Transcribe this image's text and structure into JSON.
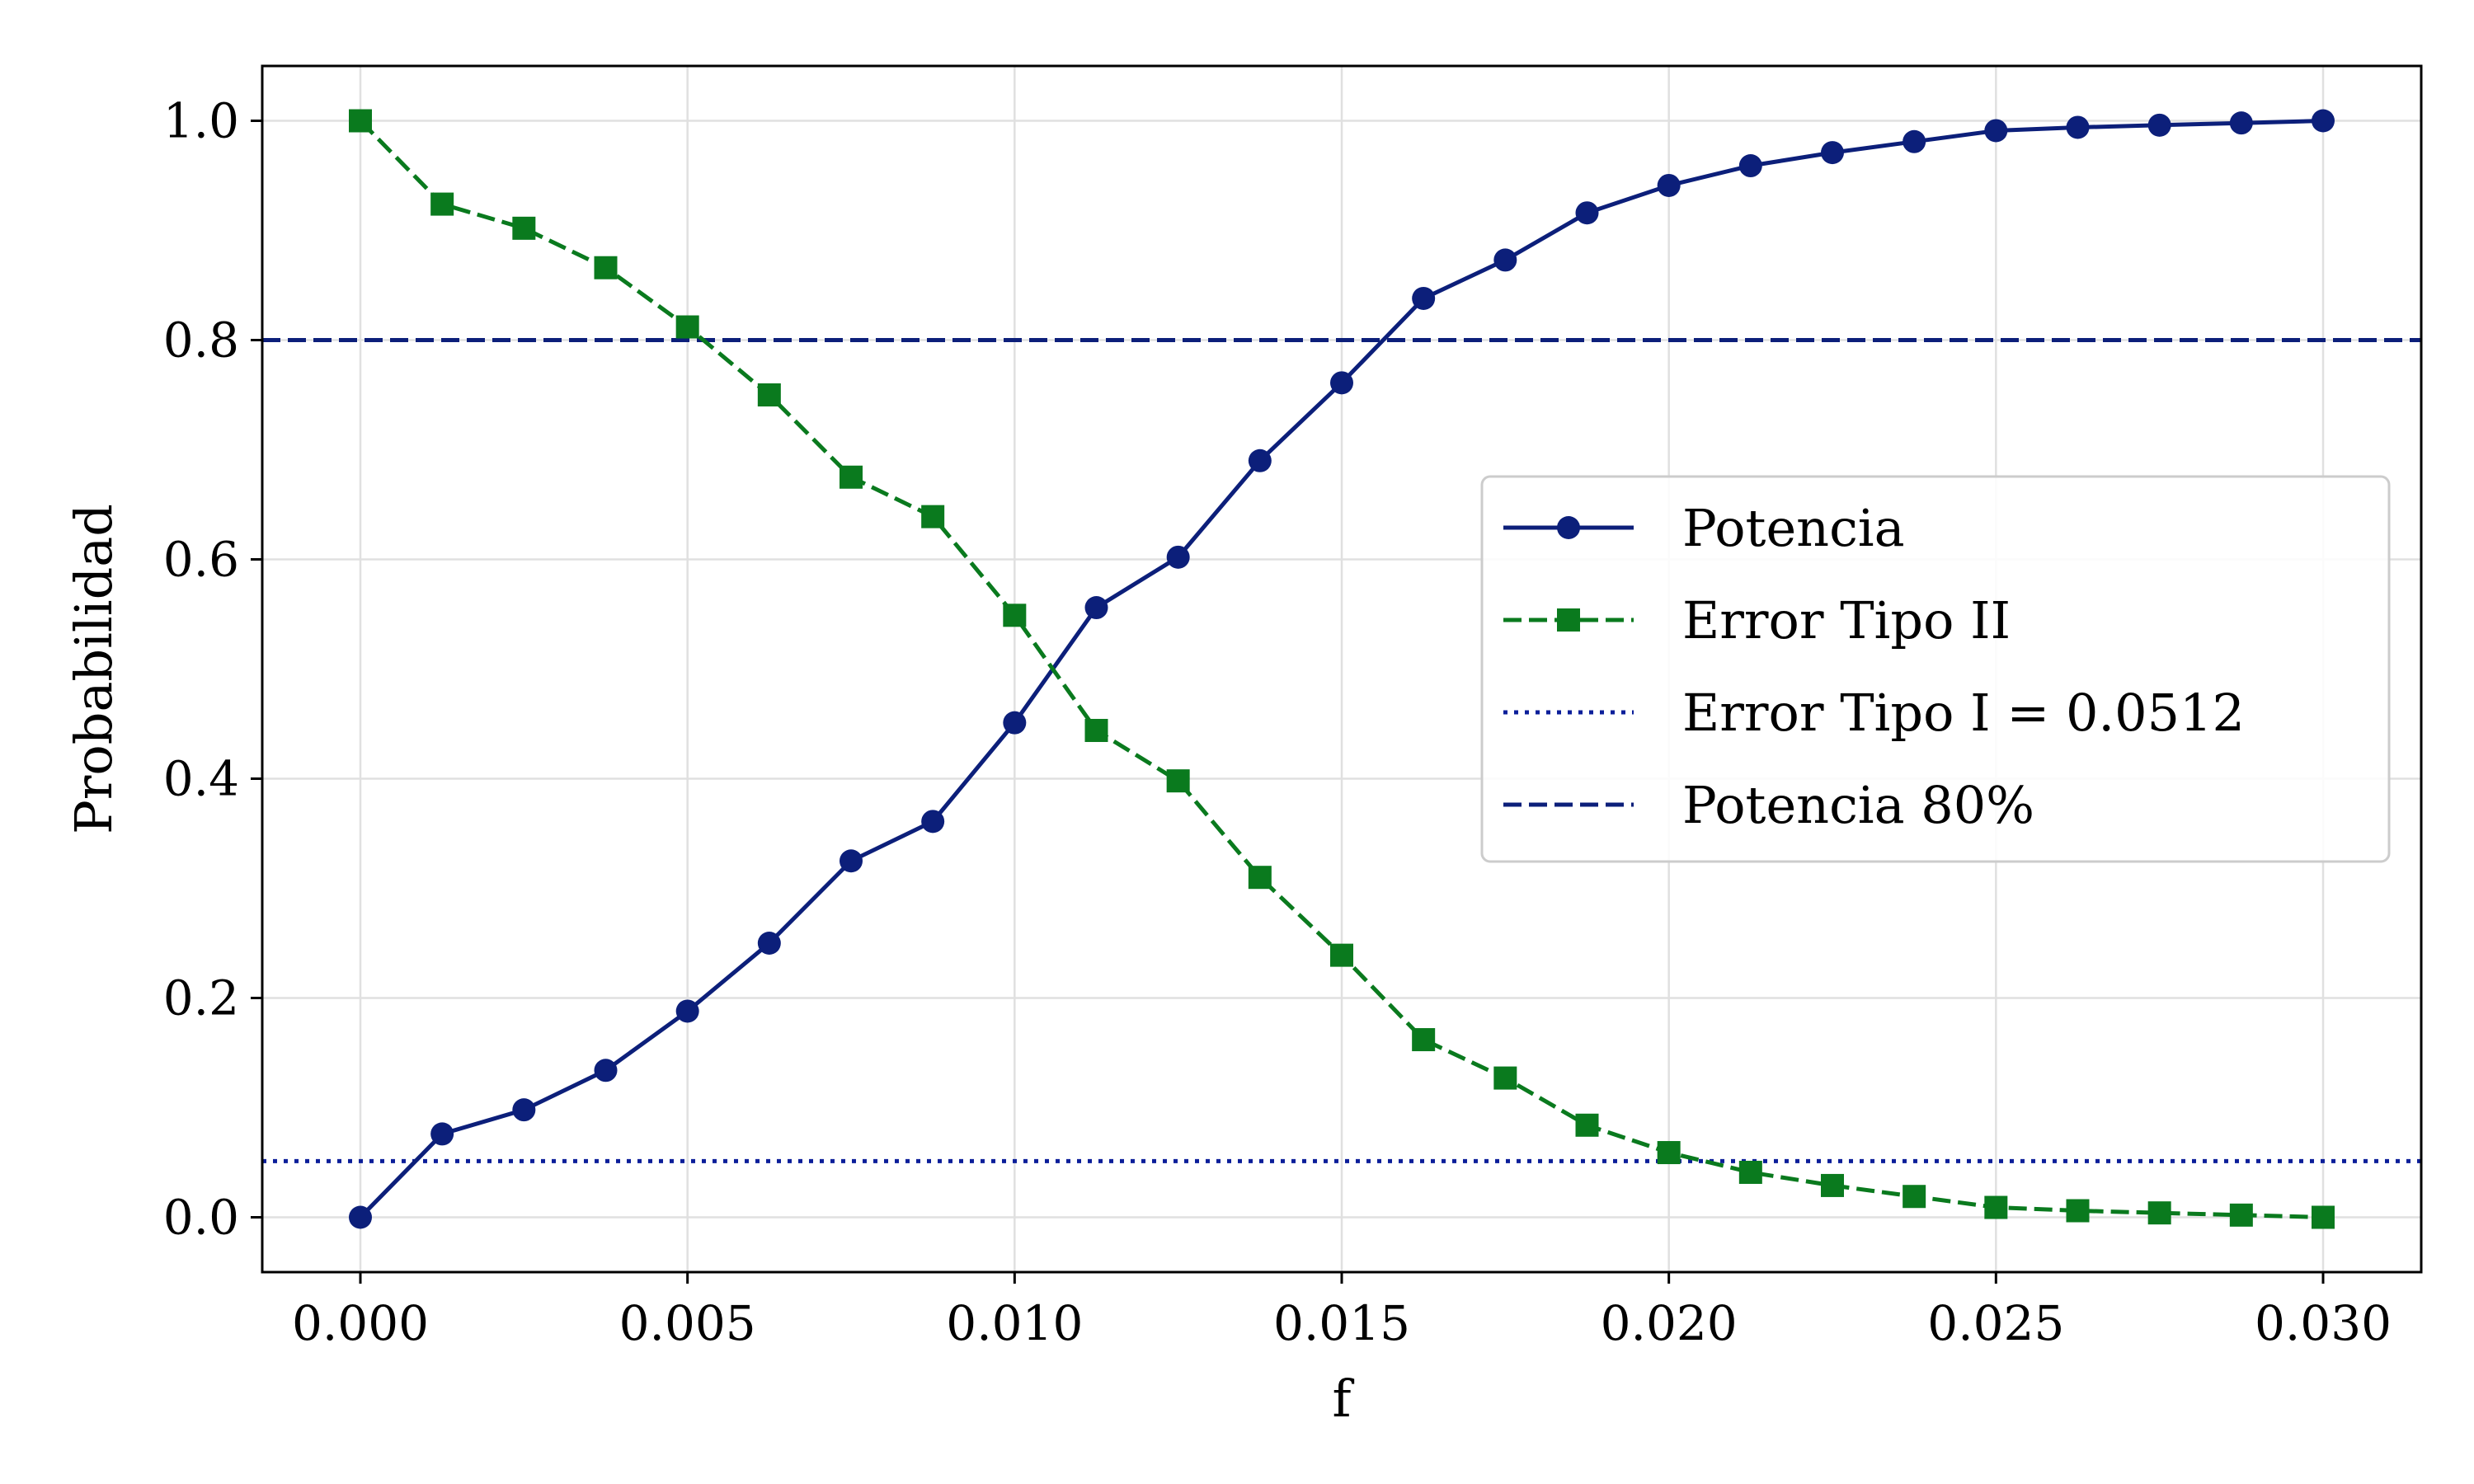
{
  "chart_data": {
    "type": "line",
    "title": "",
    "xlabel": "f",
    "ylabel": "Probabilidad",
    "xlim": [
      -0.0015,
      0.0315
    ],
    "ylim": [
      -0.05,
      1.05
    ],
    "xticks": [
      0.0,
      0.005,
      0.01,
      0.015,
      0.02,
      0.025,
      0.03
    ],
    "xtick_labels": [
      "0.000",
      "0.005",
      "0.010",
      "0.015",
      "0.020",
      "0.025",
      "0.030"
    ],
    "yticks": [
      0.0,
      0.2,
      0.4,
      0.6,
      0.8,
      1.0
    ],
    "ytick_labels": [
      "0.0",
      "0.2",
      "0.4",
      "0.6",
      "0.8",
      "1.0"
    ],
    "grid": true,
    "legend_position": "center-right",
    "x": [
      0.0,
      0.00125,
      0.0025,
      0.00375,
      0.005,
      0.00625,
      0.0075,
      0.00875,
      0.01,
      0.01125,
      0.0125,
      0.01375,
      0.015,
      0.01625,
      0.0175,
      0.01875,
      0.02,
      0.02125,
      0.0225,
      0.02375,
      0.025,
      0.02625,
      0.0275,
      0.02875,
      0.03
    ],
    "series": [
      {
        "name": "Potencia",
        "color": "#0c1f7a",
        "style": "solid",
        "marker": "circle",
        "values": [
          0.0,
          0.076,
          0.098,
          0.134,
          0.188,
          0.25,
          0.325,
          0.361,
          0.451,
          0.556,
          0.602,
          0.69,
          0.761,
          0.838,
          0.873,
          0.916,
          0.941,
          0.959,
          0.971,
          0.981,
          0.991,
          0.994,
          0.996,
          0.998,
          1.0
        ]
      },
      {
        "name": "Error Tipo II",
        "color": "#0a7a1e",
        "style": "dashed",
        "marker": "square",
        "values": [
          1.0,
          0.924,
          0.902,
          0.866,
          0.812,
          0.75,
          0.675,
          0.639,
          0.549,
          0.444,
          0.398,
          0.31,
          0.239,
          0.162,
          0.127,
          0.084,
          0.059,
          0.041,
          0.029,
          0.019,
          0.009,
          0.006,
          0.004,
          0.002,
          0.0
        ]
      }
    ],
    "reference_lines": [
      {
        "name": "Error Tipo I = 0.0512",
        "y": 0.0512,
        "color": "#0c1f9a",
        "style": "dotted"
      },
      {
        "name": "Potencia 80%",
        "y": 0.8,
        "color": "#0c1f7a",
        "style": "dashed"
      }
    ]
  }
}
